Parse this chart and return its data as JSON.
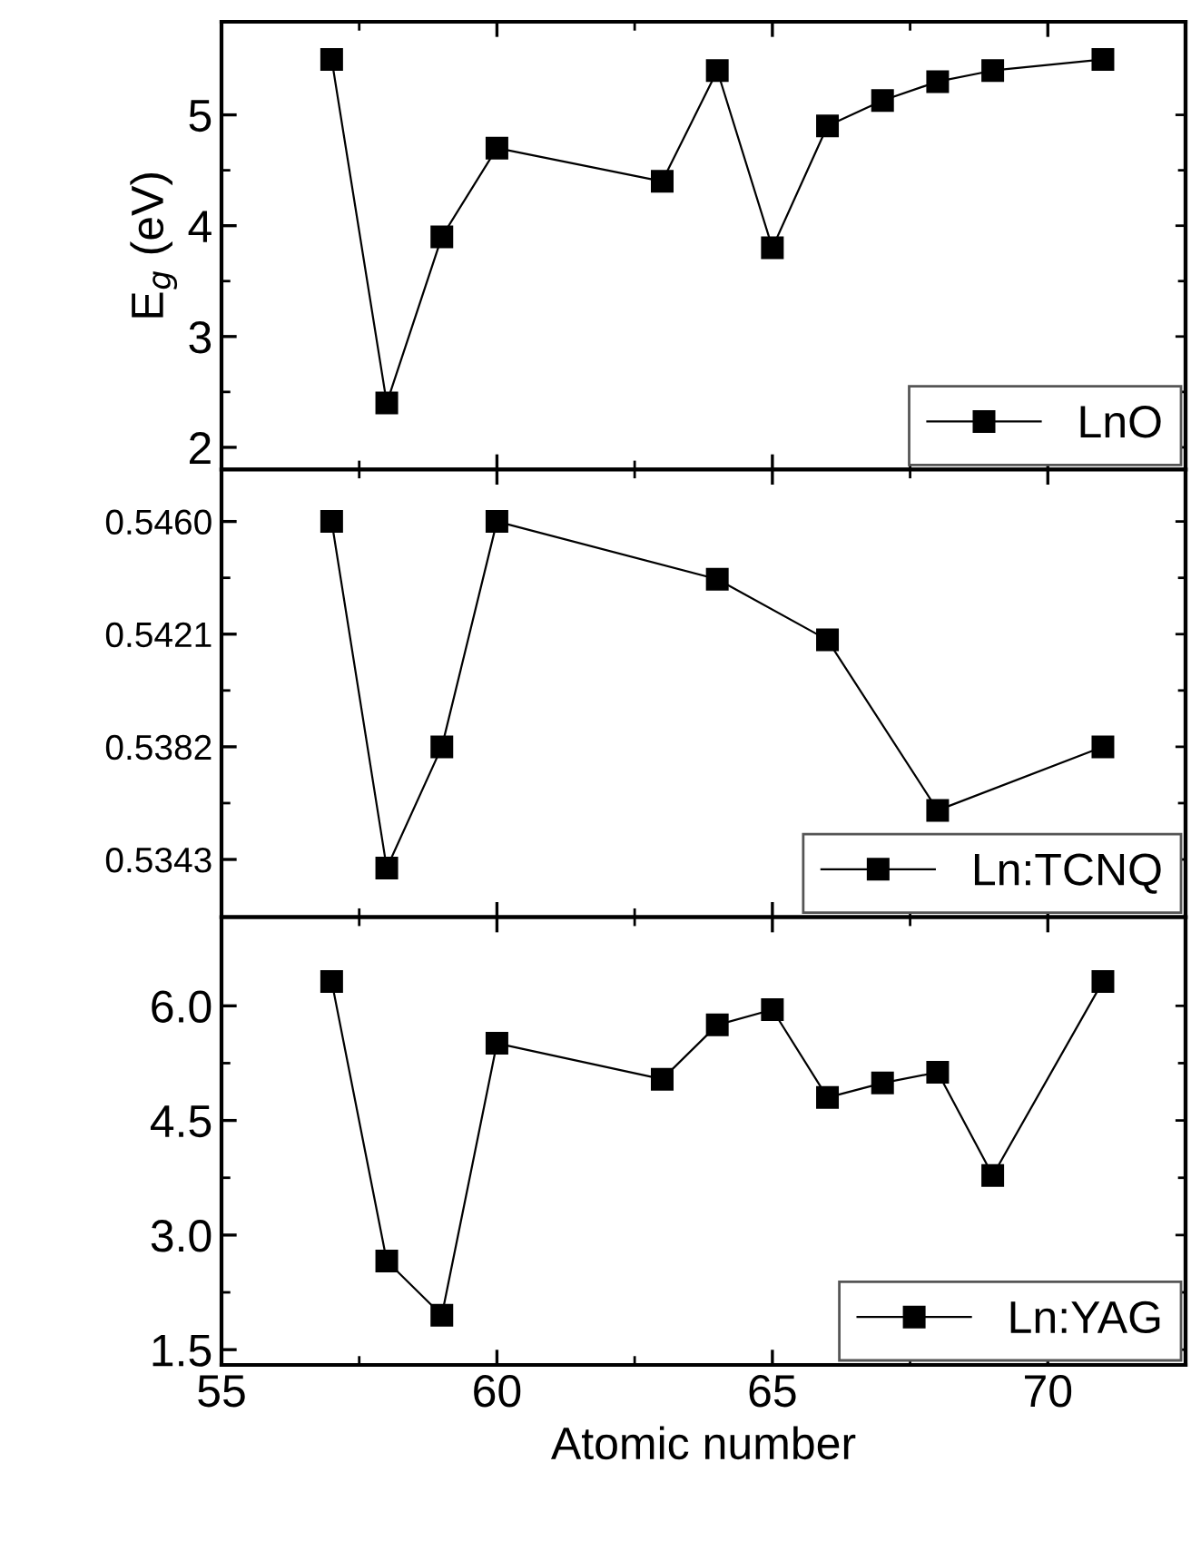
{
  "chart_data": [
    {
      "type": "line",
      "ylabel": "E$_{g}$ (eV)",
      "xlim": [
        55,
        72.4
      ],
      "xticks": [
        55,
        60,
        65,
        70
      ],
      "ylim": [
        1.8,
        5.84
      ],
      "yticks": [
        2,
        3,
        4,
        5
      ],
      "tick_labels": "y",
      "legend": "bottom right",
      "marker": "square",
      "line_style": "solid",
      "grid": false,
      "series": [
        {
          "name": "LnO",
          "color": "#000000",
          "x": [
            57,
            58,
            59,
            60,
            63,
            64,
            65,
            66,
            67,
            68,
            69,
            71
          ],
          "values": [
            5.5,
            2.4,
            3.9,
            4.7,
            4.4,
            5.4,
            3.8,
            4.9,
            5.13,
            5.3,
            5.4,
            5.5
          ]
        }
      ]
    },
    {
      "type": "line",
      "xlim": [
        55,
        72.4
      ],
      "xticks": [
        55,
        60,
        65,
        70
      ],
      "ylim": [
        0.5323,
        0.5478
      ],
      "yticks": [
        0.5343,
        0.5382,
        0.5421,
        {
          "value": 0.546,
          "label": "0.5460"
        }
      ],
      "tick_labels": "y",
      "legend": "bottom right",
      "marker": "square",
      "line_style": "solid",
      "grid": false,
      "series": [
        {
          "name": "Ln:TCNQ",
          "color": "#000000",
          "x": [
            57,
            58,
            59,
            60,
            64,
            66,
            68,
            71
          ],
          "values": [
            0.546,
            0.534,
            0.5382,
            0.546,
            0.544,
            0.5419,
            0.536,
            0.5382
          ]
        }
      ]
    },
    {
      "type": "line",
      "xlabel": "Atomic number",
      "xlim": [
        55,
        72.4
      ],
      "xticks": [
        55,
        60,
        65,
        70
      ],
      "ylim": [
        1.3,
        7.16
      ],
      "yticks": [
        {
          "value": 1.5,
          "label": "1.5"
        },
        {
          "value": 3,
          "label": "3.0"
        },
        {
          "value": 4.5,
          "label": "4.5"
        },
        {
          "value": 6,
          "label": "6.0"
        }
      ],
      "legend": "bottom right",
      "marker": "square",
      "line_style": "solid",
      "grid": false,
      "series": [
        {
          "name": "Ln:YAG",
          "color": "#000000",
          "x": [
            57,
            58,
            59,
            60,
            63,
            64,
            65,
            66,
            67,
            68,
            69,
            71
          ],
          "values": [
            6.32,
            2.66,
            1.95,
            5.51,
            5.04,
            5.75,
            5.95,
            4.8,
            4.99,
            5.13,
            3.78,
            6.32
          ]
        }
      ]
    }
  ]
}
